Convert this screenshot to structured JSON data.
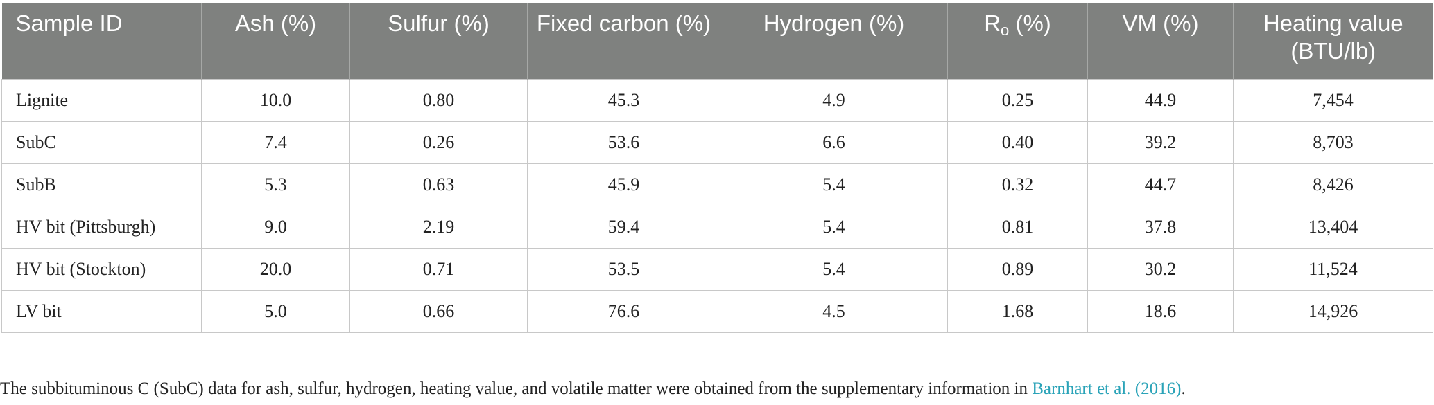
{
  "table": {
    "headers": {
      "sample_id": "Sample ID",
      "ash": "Ash (%)",
      "sulfur": "Sulfur (%)",
      "fixed_carbon": "Fixed carbon (%)",
      "hydrogen": "Hydrogen (%)",
      "ro_main": "R",
      "ro_sub": "o",
      "ro_unit": " (%)",
      "vm": "VM (%)",
      "heating_value": "Heating value (BTU/lb)"
    },
    "rows": [
      {
        "sample_id": "Lignite",
        "ash": "10.0",
        "sulfur": "0.80",
        "fixed_carbon": "45.3",
        "hydrogen": "4.9",
        "ro": "0.25",
        "vm": "44.9",
        "heating_value": "7,454"
      },
      {
        "sample_id": "SubC",
        "ash": "7.4",
        "sulfur": "0.26",
        "fixed_carbon": "53.6",
        "hydrogen": "6.6",
        "ro": "0.40",
        "vm": "39.2",
        "heating_value": "8,703"
      },
      {
        "sample_id": "SubB",
        "ash": "5.3",
        "sulfur": "0.63",
        "fixed_carbon": "45.9",
        "hydrogen": "5.4",
        "ro": "0.32",
        "vm": "44.7",
        "heating_value": "8,426"
      },
      {
        "sample_id": "HV bit (Pittsburgh)",
        "ash": "9.0",
        "sulfur": "2.19",
        "fixed_carbon": "59.4",
        "hydrogen": "5.4",
        "ro": "0.81",
        "vm": "37.8",
        "heating_value": "13,404"
      },
      {
        "sample_id": "HV bit (Stockton)",
        "ash": "20.0",
        "sulfur": "0.71",
        "fixed_carbon": "53.5",
        "hydrogen": "5.4",
        "ro": "0.89",
        "vm": "30.2",
        "heating_value": "11,524"
      },
      {
        "sample_id": "LV bit",
        "ash": "5.0",
        "sulfur": "0.66",
        "fixed_carbon": "76.6",
        "hydrogen": "4.5",
        "ro": "1.68",
        "vm": "18.6",
        "heating_value": "14,926"
      }
    ]
  },
  "footnote": {
    "text": "The subbituminous C (SubC) data for ash, sulfur, hydrogen, heating value, and volatile matter were obtained from the supplementary information in ",
    "link": "Barnhart et al. (2016)",
    "end": "."
  },
  "colors": {
    "header_bg": "#7f817f",
    "header_text": "#ffffff",
    "link": "#2aa3b8",
    "grid": "#c8c8c8"
  }
}
